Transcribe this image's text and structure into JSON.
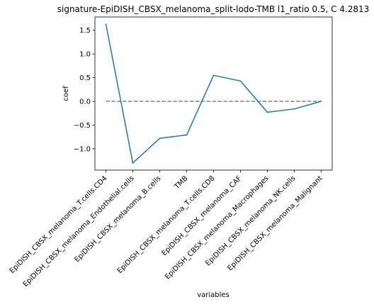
{
  "chart_data": {
    "type": "line",
    "title": "signature-EpiDISH_CBSX_melanoma_split-lodo-TMB l1_ratio 0.5, C 4.2813",
    "xlabel": "variables",
    "ylabel": "coef",
    "categories": [
      "EpiDISH_CBSX_melanoma_T.cells.CD4",
      "EpiDISH_CBSX_melanoma_Endothelial.cells",
      "EpiDISH_CBSX_melanoma_B.cells",
      "TMB",
      "EpiDISH_CBSX_melanoma_T.cells.CD8",
      "EpiDISH_CBSX_melanoma_CAF",
      "EpiDISH_CBSX_melanoma_Macrophages",
      "EpiDISH_CBSX_melanoma_NK.cells",
      "EpiDISH_CBSX_melanoma_Malignant"
    ],
    "series": [
      {
        "values": [
          1.63,
          -1.3,
          -0.78,
          -0.71,
          0.55,
          0.43,
          -0.23,
          -0.16,
          0.0
        ],
        "color": "#1f77b4"
      }
    ],
    "reference_line": {
      "y": 0,
      "style": "dashed",
      "color": "#808080"
    },
    "yticks": [
      "−1.0",
      "−0.5",
      "0.0",
      "0.5",
      "1.0",
      "1.5"
    ],
    "ytick_values": [
      -1.0,
      -0.5,
      0.0,
      0.5,
      1.0,
      1.5
    ],
    "ylim": [
      -1.45,
      1.78
    ],
    "grid": false,
    "legend": "none"
  }
}
